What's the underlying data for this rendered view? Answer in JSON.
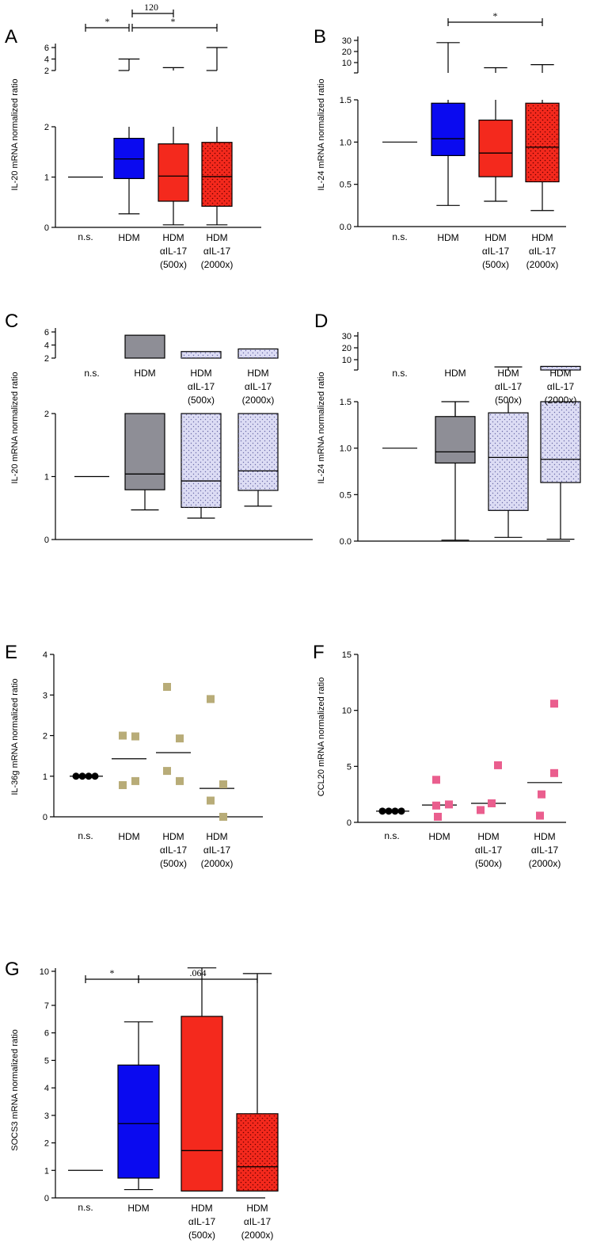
{
  "categories": [
    "n.s.",
    "HDM",
    "HDM αIL-17 (500x)",
    "HDM αIL-17 (2000x)"
  ],
  "category_lines": [
    [
      "n.s."
    ],
    [
      "HDM"
    ],
    [
      "HDM",
      "αIL-17",
      "(500x)"
    ],
    [
      "HDM",
      "αIL-17",
      "(2000x)"
    ]
  ],
  "colors": {
    "blue": "#0a0af0",
    "red": "#f4291d",
    "gray": "#8e8e96",
    "lavender": "#dcdcf4",
    "tan": "#b8ac78",
    "pink": "#ea5e8e",
    "black": "#000000"
  },
  "chart_data": [
    {
      "panel": "A",
      "type": "box",
      "ylabel": "IL-20 mRNA normalized ratio",
      "y_ticks_lower": [
        "0",
        "1",
        "2"
      ],
      "y_ticks_upper": [
        "2",
        "4",
        "6"
      ],
      "y_break": true,
      "boxes": [
        {
          "category": "n.s.",
          "line": 1.0
        },
        {
          "category": "HDM",
          "min": 0.27,
          "q1": 0.97,
          "median": 1.36,
          "q3": 1.77,
          "max": 4.0,
          "fill": "blue",
          "dotted": false
        },
        {
          "category": "HDM αIL-17 (500x)",
          "min": 0.05,
          "q1": 0.52,
          "median": 1.02,
          "q3": 1.66,
          "max": 2.5,
          "fill": "red",
          "dotted": false
        },
        {
          "category": "HDM αIL-17 (2000x)",
          "min": 0.05,
          "q1": 0.42,
          "median": 1.01,
          "q3": 1.69,
          "max": 6.0,
          "fill": "red",
          "dotted": true
        }
      ],
      "significance": [
        {
          "from": "n.s.",
          "to": "HDM",
          "label": "*"
        },
        {
          "from": "HDM",
          "to": "HDM αIL-17 (500x)",
          "label": "120"
        },
        {
          "from": "HDM",
          "to": "HDM αIL-17 (2000x)",
          "label": "*"
        }
      ]
    },
    {
      "panel": "B",
      "type": "box",
      "ylabel": "IL-24 mRNA normalized ratio",
      "y_ticks_lower": [
        "0.0",
        "0.5",
        "1.0",
        "1.5"
      ],
      "y_ticks_upper": [
        "10",
        "20",
        "30"
      ],
      "y_break": true,
      "boxes": [
        {
          "category": "n.s.",
          "line": 1.0
        },
        {
          "category": "HDM",
          "min": 0.25,
          "q1": 0.84,
          "median": 1.04,
          "q3": 1.46,
          "max": 28,
          "fill": "blue",
          "dotted": false
        },
        {
          "category": "HDM αIL-17 (500x)",
          "min": 0.3,
          "q1": 0.59,
          "median": 0.87,
          "q3": 1.26,
          "max": 5,
          "fill": "red",
          "dotted": false
        },
        {
          "category": "HDM αIL-17 (2000x)",
          "min": 0.19,
          "q1": 0.53,
          "median": 0.94,
          "q3": 1.46,
          "max": 8,
          "fill": "red",
          "dotted": true
        }
      ],
      "significance": [
        {
          "from": "HDM",
          "to": "HDM αIL-17 (2000x)",
          "label": "*"
        }
      ]
    },
    {
      "panel": "C",
      "type": "box",
      "ylabel": "IL-20 mRNA normalized ratio",
      "y_ticks_lower": [
        "0",
        "1",
        "2"
      ],
      "y_ticks_upper": [
        "2",
        "4",
        "6"
      ],
      "y_break": true,
      "boxes": [
        {
          "category": "n.s.",
          "line": 1.0
        },
        {
          "category": "HDM",
          "min": 0.47,
          "q1": 0.79,
          "median": 1.04,
          "q3": 2.0,
          "max": 5.5,
          "fill": "gray",
          "dotted": false
        },
        {
          "category": "HDM αIL-17 (500x)",
          "min": 0.34,
          "q1": 0.51,
          "median": 0.93,
          "q3": 2.0,
          "max": 3.0,
          "fill": "lavender",
          "dotted": true
        },
        {
          "category": "HDM αIL-17 (2000x)",
          "min": 0.53,
          "q1": 0.78,
          "median": 1.09,
          "q3": 2.0,
          "max": 3.4,
          "fill": "lavender",
          "dotted": true
        }
      ],
      "significance": []
    },
    {
      "panel": "D",
      "type": "box",
      "ylabel": "IL-24 mRNA normalized ratio",
      "y_ticks_lower": [
        "0.0",
        "0.5",
        "1.0",
        "1.5"
      ],
      "y_ticks_upper": [
        "10",
        "20",
        "30"
      ],
      "y_break": true,
      "boxes": [
        {
          "category": "n.s.",
          "line": 1.0
        },
        {
          "category": "HDM",
          "min": 0.01,
          "q1": 0.84,
          "median": 0.96,
          "q3": 1.34,
          "max": 1.5,
          "fill": "gray",
          "dotted": false
        },
        {
          "category": "HDM αIL-17 (500x)",
          "min": 0.04,
          "q1": 0.33,
          "median": 0.9,
          "q3": 1.38,
          "max": 3,
          "fill": "lavender",
          "dotted": true
        },
        {
          "category": "HDM αIL-17 (2000x)",
          "min": 0.02,
          "q1": 0.63,
          "median": 0.88,
          "q3": 1.5,
          "max": 3.5,
          "fill": "lavender",
          "dotted": true
        }
      ],
      "significance": []
    },
    {
      "panel": "E",
      "type": "scatter",
      "ylabel": "IL-36g mRNA normalized ratio",
      "y_ticks": [
        "0",
        "1",
        "2",
        "3",
        "4"
      ],
      "ylim": [
        0,
        4
      ],
      "groups": [
        {
          "category": "n.s.",
          "points": [
            1.0,
            1.0,
            1.0,
            1.0
          ],
          "mean": 1.0,
          "marker": "circle",
          "color": "black"
        },
        {
          "category": "HDM",
          "points": [
            2.0,
            1.98,
            0.78,
            0.88
          ],
          "mean": 1.43,
          "marker": "square",
          "color": "tan"
        },
        {
          "category": "HDM αIL-17 (500x)",
          "points": [
            3.2,
            1.93,
            1.13,
            0.88
          ],
          "mean": 1.58,
          "marker": "square",
          "color": "tan"
        },
        {
          "category": "HDM αIL-17 (2000x)",
          "points": [
            2.9,
            0.8,
            0.4,
            0.0
          ],
          "mean": 0.7,
          "marker": "square",
          "color": "tan"
        }
      ]
    },
    {
      "panel": "F",
      "type": "scatter",
      "ylabel": "CCL20 mRNA normalized ratio",
      "y_ticks": [
        "0",
        "5",
        "10",
        "15"
      ],
      "ylim": [
        0,
        15
      ],
      "groups": [
        {
          "category": "n.s.",
          "points": [
            1.0,
            1.0,
            1.0,
            1.0
          ],
          "mean": 1.0,
          "marker": "circle",
          "color": "black"
        },
        {
          "category": "HDM",
          "points": [
            3.8,
            1.5,
            1.6,
            0.5
          ],
          "mean": 1.55,
          "marker": "square",
          "color": "pink"
        },
        {
          "category": "HDM αIL-17 (500x)",
          "points": [
            5.1,
            1.1,
            1.7
          ],
          "mean": 1.7,
          "marker": "square",
          "color": "pink"
        },
        {
          "category": "HDM αIL-17 (2000x)",
          "points": [
            10.6,
            4.4,
            2.5,
            0.6
          ],
          "mean": 3.55,
          "marker": "square",
          "color": "pink"
        }
      ]
    },
    {
      "panel": "G",
      "type": "box",
      "ylabel": "SOCS3 mRNA normalized ratio",
      "y_ticks": [
        "0",
        "1",
        "2",
        "3",
        "4",
        "5",
        "6",
        "7",
        "10"
      ],
      "boxes": [
        {
          "category": "n.s.",
          "line": 1.0
        },
        {
          "category": "HDM",
          "min": 0.3,
          "q1": 0.72,
          "median": 2.7,
          "q3": 4.83,
          "max": 6.4,
          "fill": "blue",
          "dotted": false
        },
        {
          "category": "HDM αIL-17 (500x)",
          "min": 0.25,
          "q1": 0.25,
          "median": 1.72,
          "q3": 6.6,
          "max": 10.3,
          "fill": "red",
          "dotted": false
        },
        {
          "category": "HDM αIL-17 (2000x)",
          "min": 0.25,
          "q1": 0.25,
          "median": 1.13,
          "q3": 3.06,
          "max": 9.8,
          "fill": "red",
          "dotted": true
        }
      ],
      "significance": [
        {
          "from": "n.s.",
          "to": "HDM",
          "label": "*"
        },
        {
          "from": "HDM",
          "to": "HDM αIL-17 (2000x)",
          "label": ".064"
        }
      ]
    }
  ]
}
